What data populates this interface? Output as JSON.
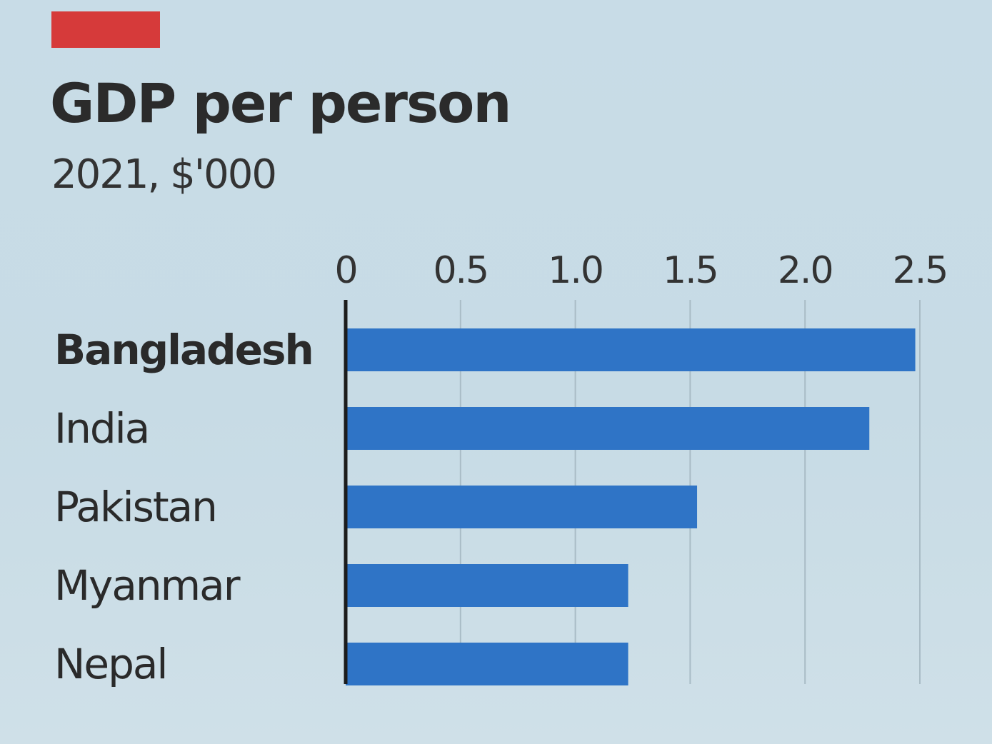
{
  "colors": {
    "accent": "#d63a3a",
    "bar": "#2f74c6",
    "background": "#c9dce6",
    "grid": "#a9bcc6",
    "axis": "#1c1c1c"
  },
  "chart_data": {
    "type": "bar",
    "orientation": "horizontal",
    "title": "GDP per person",
    "subtitle": "2021, $'000",
    "xlabel": "",
    "ylabel": "",
    "xlim": [
      0,
      2.5
    ],
    "ticks": [
      "0",
      "0.5",
      "1.0",
      "1.5",
      "2.0",
      "2.5"
    ],
    "tick_values": [
      0,
      0.5,
      1.0,
      1.5,
      2.0,
      2.5
    ],
    "categories": [
      "Bangladesh",
      "India",
      "Pakistan",
      "Myanmar",
      "Nepal"
    ],
    "highlighted_category": "Bangladesh",
    "values": [
      2.48,
      2.28,
      1.53,
      1.23,
      1.23
    ],
    "grid": true,
    "legend": "none"
  }
}
